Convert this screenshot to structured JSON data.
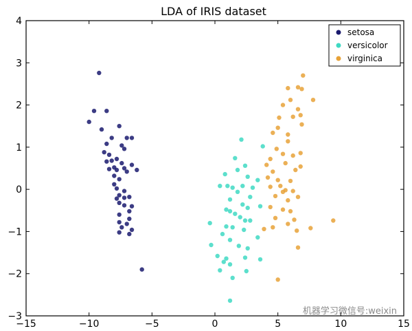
{
  "chart_data": {
    "type": "scatter",
    "title": "LDA of IRIS dataset",
    "xlabel": "",
    "ylabel": "",
    "xlim": [
      -15,
      15
    ],
    "ylim": [
      -3,
      4
    ],
    "xticks": [
      -15,
      -10,
      -5,
      0,
      5,
      10,
      15
    ],
    "yticks": [
      -3,
      -2,
      -1,
      0,
      1,
      2,
      3,
      4
    ],
    "grid": false,
    "legend_position": "top-right",
    "series": [
      {
        "name": "setosa",
        "color": "#1a1a6e",
        "points": [
          [
            -9.2,
            2.76
          ],
          [
            -9.6,
            1.86
          ],
          [
            -8.6,
            1.86
          ],
          [
            -10.0,
            1.6
          ],
          [
            -9.0,
            1.42
          ],
          [
            -7.6,
            1.5
          ],
          [
            -8.2,
            1.22
          ],
          [
            -7.0,
            1.22
          ],
          [
            -6.6,
            1.22
          ],
          [
            -8.6,
            1.08
          ],
          [
            -7.4,
            1.04
          ],
          [
            -8.8,
            0.88
          ],
          [
            -8.4,
            0.82
          ],
          [
            -7.2,
            0.96
          ],
          [
            -7.8,
            0.72
          ],
          [
            -8.2,
            0.68
          ],
          [
            -8.6,
            0.66
          ],
          [
            -7.4,
            0.62
          ],
          [
            -6.6,
            0.58
          ],
          [
            -8.0,
            0.52
          ],
          [
            -7.8,
            0.46
          ],
          [
            -7.2,
            0.5
          ],
          [
            -8.4,
            0.48
          ],
          [
            -6.2,
            0.46
          ],
          [
            -7.0,
            0.42
          ],
          [
            -8.0,
            0.32
          ],
          [
            -7.6,
            0.24
          ],
          [
            -8.0,
            0.12
          ],
          [
            -7.8,
            0.02
          ],
          [
            -7.2,
            -0.04
          ],
          [
            -7.6,
            -0.14
          ],
          [
            -7.2,
            -0.2
          ],
          [
            -6.8,
            -0.18
          ],
          [
            -7.8,
            -0.22
          ],
          [
            -7.6,
            -0.32
          ],
          [
            -7.2,
            -0.38
          ],
          [
            -6.6,
            -0.4
          ],
          [
            -6.8,
            -0.52
          ],
          [
            -7.6,
            -0.6
          ],
          [
            -6.8,
            -0.7
          ],
          [
            -7.6,
            -0.78
          ],
          [
            -7.0,
            -0.82
          ],
          [
            -7.4,
            -0.9
          ],
          [
            -6.6,
            -0.96
          ],
          [
            -7.6,
            -1.02
          ],
          [
            -6.8,
            -1.06
          ],
          [
            -5.8,
            -1.9
          ]
        ]
      },
      {
        "name": "versicolor",
        "color": "#40d9c3",
        "points": [
          [
            2.1,
            1.18
          ],
          [
            3.8,
            1.02
          ],
          [
            1.6,
            0.74
          ],
          [
            2.4,
            0.56
          ],
          [
            1.8,
            0.46
          ],
          [
            0.8,
            0.36
          ],
          [
            2.6,
            0.3
          ],
          [
            3.4,
            0.22
          ],
          [
            0.4,
            0.08
          ],
          [
            1.0,
            0.08
          ],
          [
            1.4,
            0.04
          ],
          [
            2.2,
            0.08
          ],
          [
            1.8,
            -0.06
          ],
          [
            3.0,
            0.04
          ],
          [
            2.8,
            -0.18
          ],
          [
            1.2,
            -0.24
          ],
          [
            2.2,
            -0.36
          ],
          [
            0.9,
            -0.48
          ],
          [
            1.2,
            -0.52
          ],
          [
            1.6,
            -0.58
          ],
          [
            2.0,
            -0.66
          ],
          [
            2.6,
            -0.44
          ],
          [
            3.6,
            -0.4
          ],
          [
            2.4,
            -0.74
          ],
          [
            1.4,
            -0.9
          ],
          [
            0.9,
            -0.88
          ],
          [
            2.3,
            -0.96
          ],
          [
            2.8,
            -0.74
          ],
          [
            -0.4,
            -0.8
          ],
          [
            0.6,
            -1.06
          ],
          [
            1.2,
            -1.2
          ],
          [
            3.4,
            -1.14
          ],
          [
            1.9,
            -1.34
          ],
          [
            2.6,
            -1.4
          ],
          [
            -0.3,
            -1.32
          ],
          [
            0.2,
            -1.58
          ],
          [
            0.9,
            -1.64
          ],
          [
            2.4,
            -1.62
          ],
          [
            0.7,
            -1.72
          ],
          [
            1.2,
            -1.78
          ],
          [
            3.6,
            -1.66
          ],
          [
            2.5,
            -1.94
          ],
          [
            0.4,
            -1.92
          ],
          [
            1.4,
            -2.1
          ],
          [
            1.2,
            -2.64
          ]
        ]
      },
      {
        "name": "virginica",
        "color": "#e8a238",
        "points": [
          [
            7.0,
            2.7
          ],
          [
            6.6,
            2.42
          ],
          [
            6.9,
            2.38
          ],
          [
            5.8,
            2.4
          ],
          [
            6.0,
            2.12
          ],
          [
            7.8,
            2.12
          ],
          [
            5.4,
            2.0
          ],
          [
            6.6,
            1.9
          ],
          [
            5.1,
            1.7
          ],
          [
            6.2,
            1.72
          ],
          [
            6.8,
            1.76
          ],
          [
            6.9,
            1.54
          ],
          [
            5.0,
            1.46
          ],
          [
            5.8,
            1.3
          ],
          [
            4.6,
            1.34
          ],
          [
            5.8,
            1.14
          ],
          [
            4.9,
            0.96
          ],
          [
            6.8,
            0.86
          ],
          [
            5.4,
            0.84
          ],
          [
            6.2,
            0.8
          ],
          [
            4.4,
            0.72
          ],
          [
            4.1,
            0.58
          ],
          [
            5.6,
            0.62
          ],
          [
            6.8,
            0.54
          ],
          [
            4.6,
            0.42
          ],
          [
            6.4,
            0.46
          ],
          [
            4.2,
            0.28
          ],
          [
            5.0,
            0.22
          ],
          [
            6.0,
            0.2
          ],
          [
            4.4,
            0.06
          ],
          [
            5.2,
            0.08
          ],
          [
            5.6,
            -0.02
          ],
          [
            6.2,
            -0.04
          ],
          [
            5.4,
            -0.06
          ],
          [
            6.6,
            -0.18
          ],
          [
            4.8,
            -0.16
          ],
          [
            5.8,
            -0.26
          ],
          [
            4.4,
            -0.42
          ],
          [
            5.4,
            -0.48
          ],
          [
            6.0,
            -0.52
          ],
          [
            4.8,
            -0.68
          ],
          [
            6.3,
            -0.72
          ],
          [
            5.8,
            -0.82
          ],
          [
            3.9,
            -0.94
          ],
          [
            6.5,
            -0.98
          ],
          [
            7.6,
            -0.92
          ],
          [
            4.6,
            -0.9
          ],
          [
            9.4,
            -0.74
          ],
          [
            6.6,
            -1.38
          ],
          [
            5.0,
            -2.14
          ]
        ]
      }
    ]
  },
  "watermark": "机器学习微信号:weixin"
}
